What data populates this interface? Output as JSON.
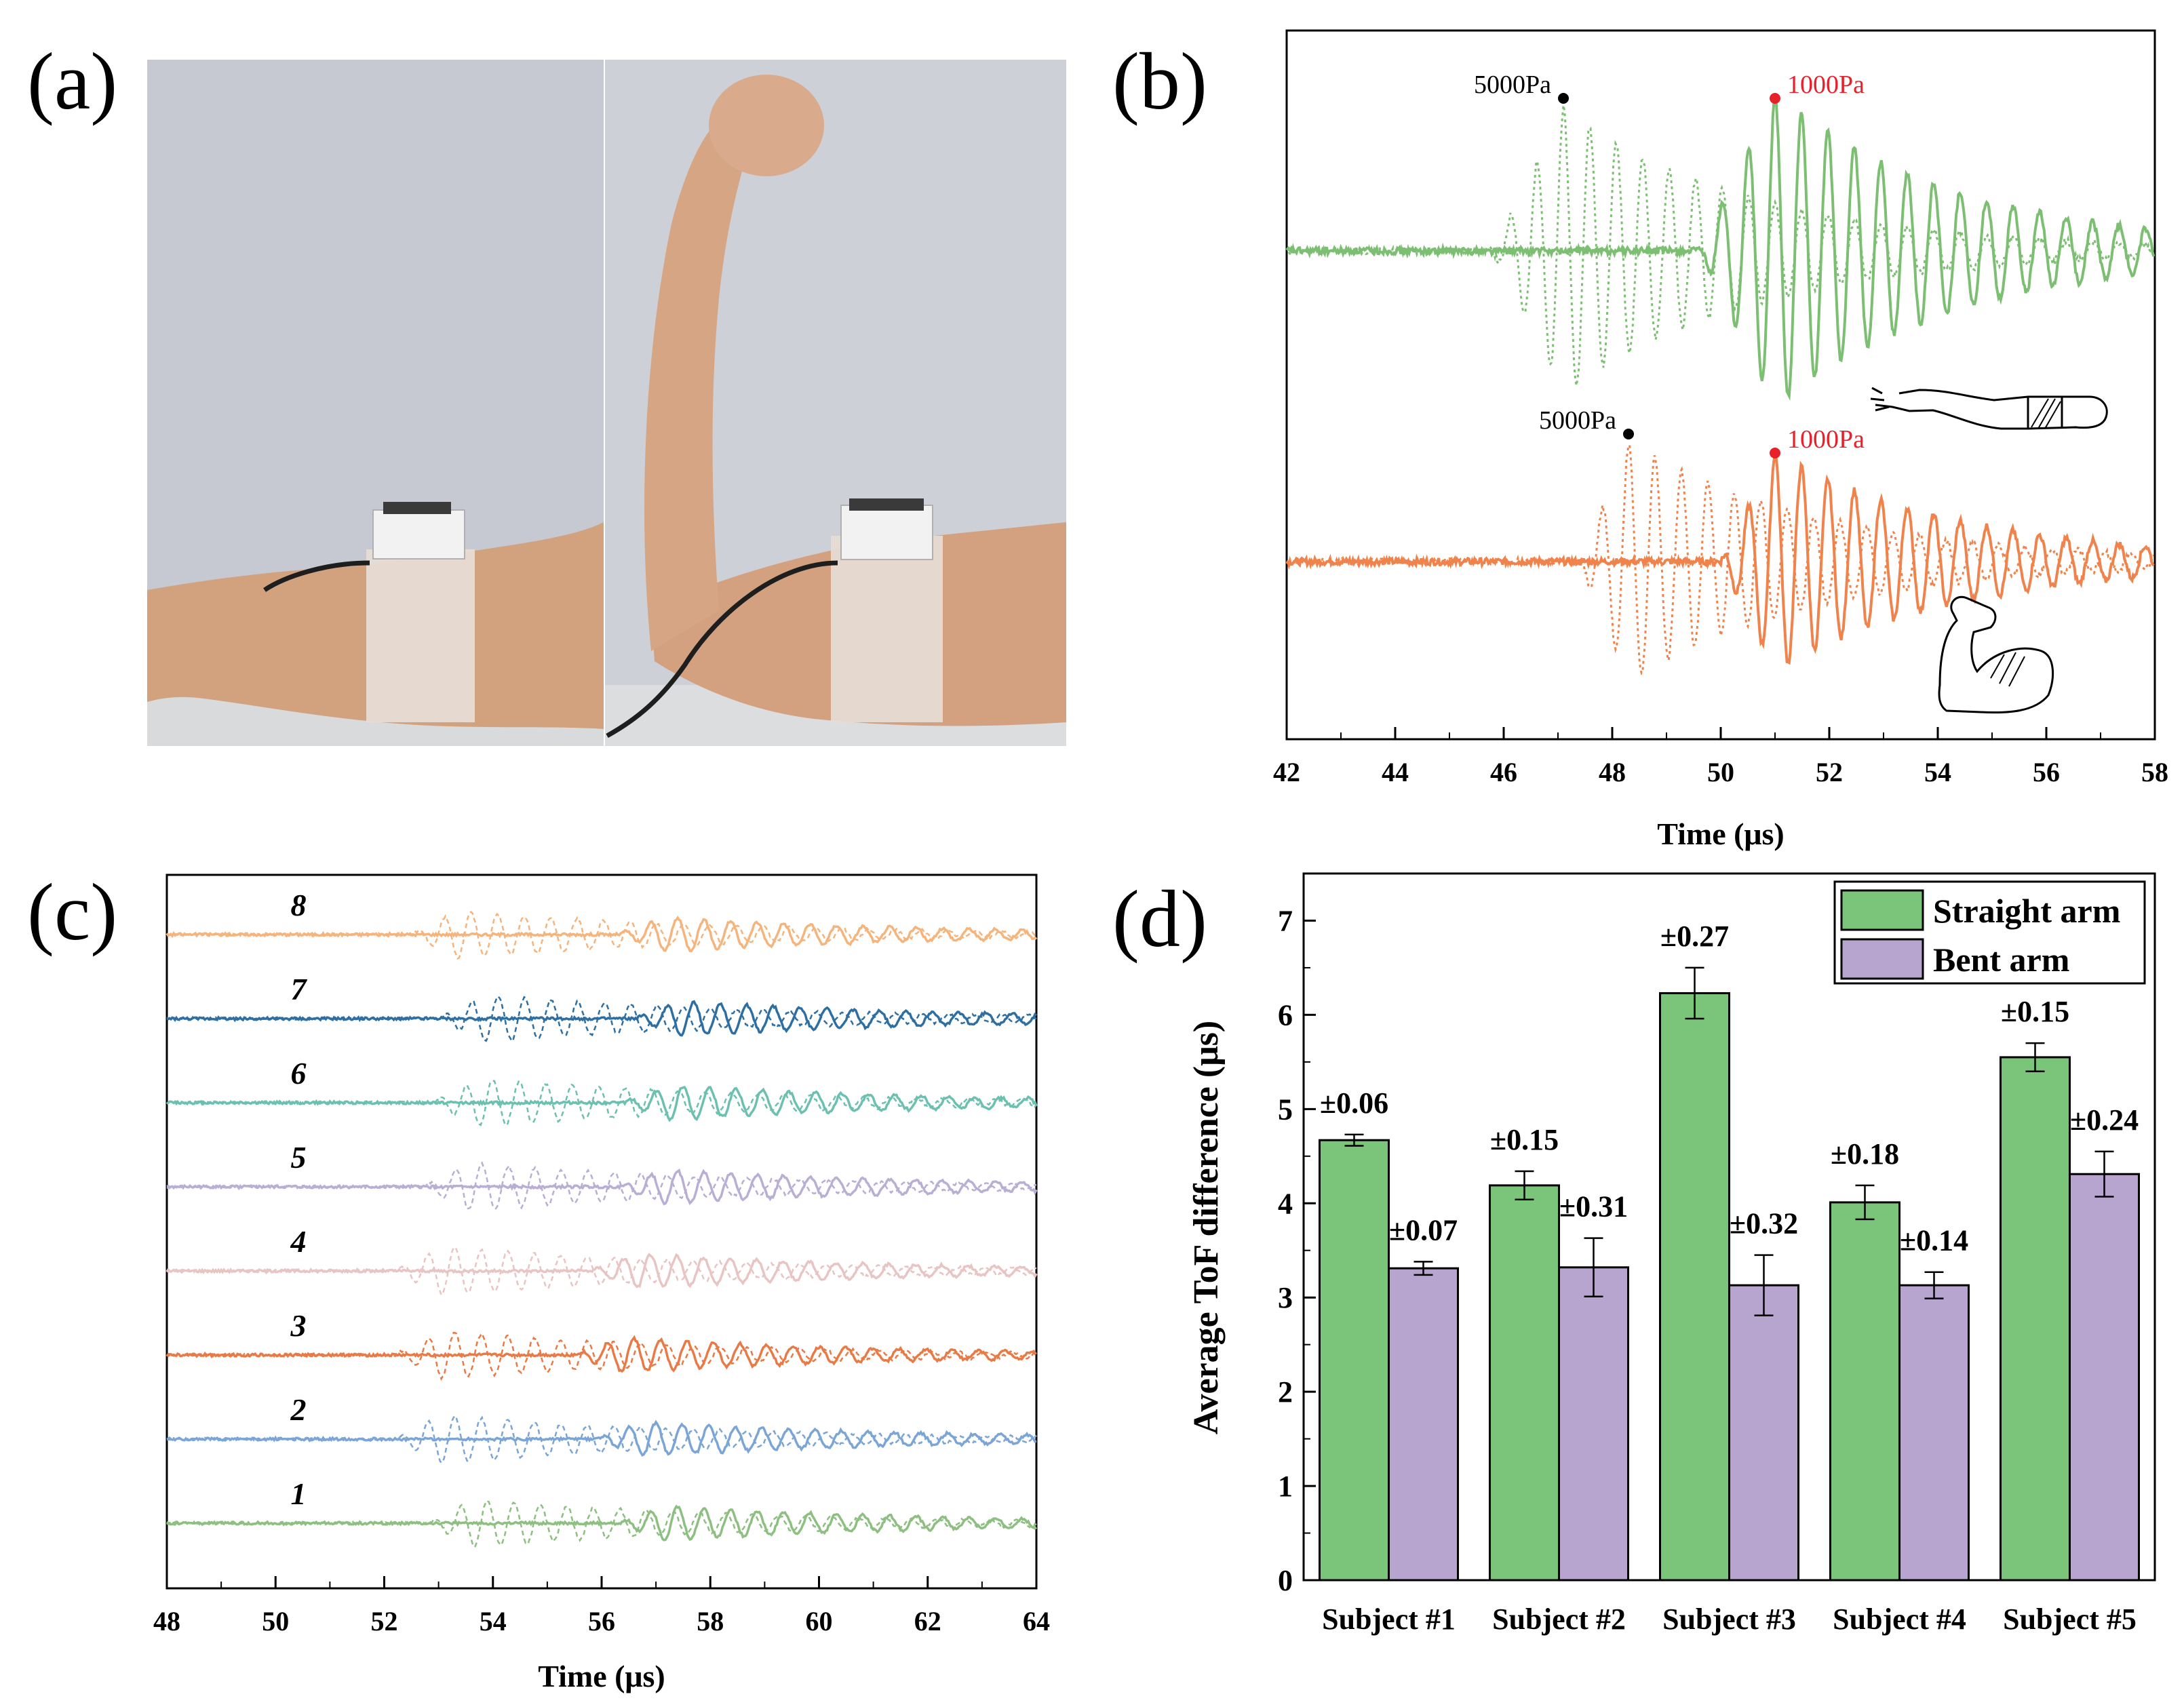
{
  "panels": {
    "a": {
      "label": "(a)"
    },
    "b": {
      "label": "(b)"
    },
    "c": {
      "label": "(c)"
    },
    "d": {
      "label": "(d)"
    }
  },
  "colors": {
    "green": "#7cbf72",
    "orange": "#f0834b",
    "straight": "#7bc57a",
    "bent": "#b7a5cf",
    "red": "#e8202a",
    "skin": "#d6a27e",
    "wall": "#c8cbd3"
  },
  "chart_data": [
    {
      "id": "b",
      "type": "line",
      "xlabel": "Time (μs)",
      "xlim": [
        42,
        58
      ],
      "xticks": [
        "42",
        "44",
        "46",
        "48",
        "50",
        "52",
        "54",
        "56",
        "58"
      ],
      "series": [
        {
          "name": "straight arm 5000Pa",
          "color": "#7cbf72",
          "style": "dotted",
          "onset": 45.8,
          "peak": 47.1,
          "freq": 2.05,
          "amp": 1.0
        },
        {
          "name": "straight arm 1000Pa",
          "color": "#7cbf72",
          "style": "solid",
          "onset": 49.6,
          "peak": 51.0,
          "freq": 2.05,
          "amp": 1.05
        },
        {
          "name": "bent arm 5000Pa",
          "color": "#f0834b",
          "style": "dotted",
          "onset": 47.4,
          "peak": 48.3,
          "freq": 2.05,
          "amp": 0.85
        },
        {
          "name": "bent arm 1000Pa",
          "color": "#f0834b",
          "style": "solid",
          "onset": 50.0,
          "peak": 51.0,
          "freq": 2.05,
          "amp": 0.75
        }
      ],
      "annotations": [
        {
          "text": "5000Pa",
          "x": 47.1,
          "color": "black"
        },
        {
          "text": "1000Pa",
          "x": 51.0,
          "color": "red"
        },
        {
          "text": "5000Pa",
          "x": 48.3,
          "color": "black"
        },
        {
          "text": "1000Pa",
          "x": 51.0,
          "color": "red"
        }
      ]
    },
    {
      "id": "c",
      "type": "line",
      "xlabel": "Time (μs)",
      "xlim": [
        48,
        64
      ],
      "xticks": [
        "48",
        "50",
        "52",
        "54",
        "56",
        "58",
        "60",
        "62",
        "64"
      ],
      "traces": [
        {
          "label": "8",
          "color": "#f6b47d",
          "dotted_onset": 52.5,
          "solid_onset": 56.3
        },
        {
          "label": "7",
          "color": "#2d6fa3",
          "dotted_onset": 53.0,
          "solid_onset": 56.6
        },
        {
          "label": "6",
          "color": "#6cc0b0",
          "dotted_onset": 52.9,
          "solid_onset": 56.4
        },
        {
          "label": "5",
          "color": "#b9aed3",
          "dotted_onset": 52.7,
          "solid_onset": 56.3
        },
        {
          "label": "4",
          "color": "#e8c5c3",
          "dotted_onset": 52.2,
          "solid_onset": 55.8
        },
        {
          "label": "3",
          "color": "#ea7a45",
          "dotted_onset": 52.2,
          "solid_onset": 55.5
        },
        {
          "label": "2",
          "color": "#7aa5d6",
          "dotted_onset": 52.2,
          "solid_onset": 55.9
        },
        {
          "label": "1",
          "color": "#8cbf80",
          "dotted_onset": 52.8,
          "solid_onset": 56.3
        }
      ]
    },
    {
      "id": "d",
      "type": "bar",
      "ylabel": "Average ToF difference (μs)",
      "ylim": [
        0,
        7.5
      ],
      "yticks": [
        "0",
        "1",
        "2",
        "3",
        "4",
        "5",
        "6",
        "7"
      ],
      "categories": [
        "Subject #1",
        "Subject #2",
        "Subject #3",
        "Subject #4",
        "Subject #5"
      ],
      "series": [
        {
          "name": "Straight arm",
          "color": "#7bc57a",
          "values": [
            4.67,
            4.19,
            6.23,
            4.01,
            5.55
          ],
          "errors": [
            0.06,
            0.15,
            0.27,
            0.18,
            0.15
          ],
          "error_labels": [
            "±0.06",
            "±0.15",
            "±0.27",
            "±0.18",
            "±0.15"
          ]
        },
        {
          "name": "Bent arm",
          "color": "#b7a5cf",
          "values": [
            3.31,
            3.32,
            3.13,
            3.13,
            4.31
          ],
          "errors": [
            0.07,
            0.31,
            0.32,
            0.14,
            0.24
          ],
          "error_labels": [
            "±0.07",
            "±0.31",
            "±0.32",
            "±0.14",
            "±0.24"
          ]
        }
      ],
      "legend": {
        "position": "top-right"
      }
    }
  ]
}
